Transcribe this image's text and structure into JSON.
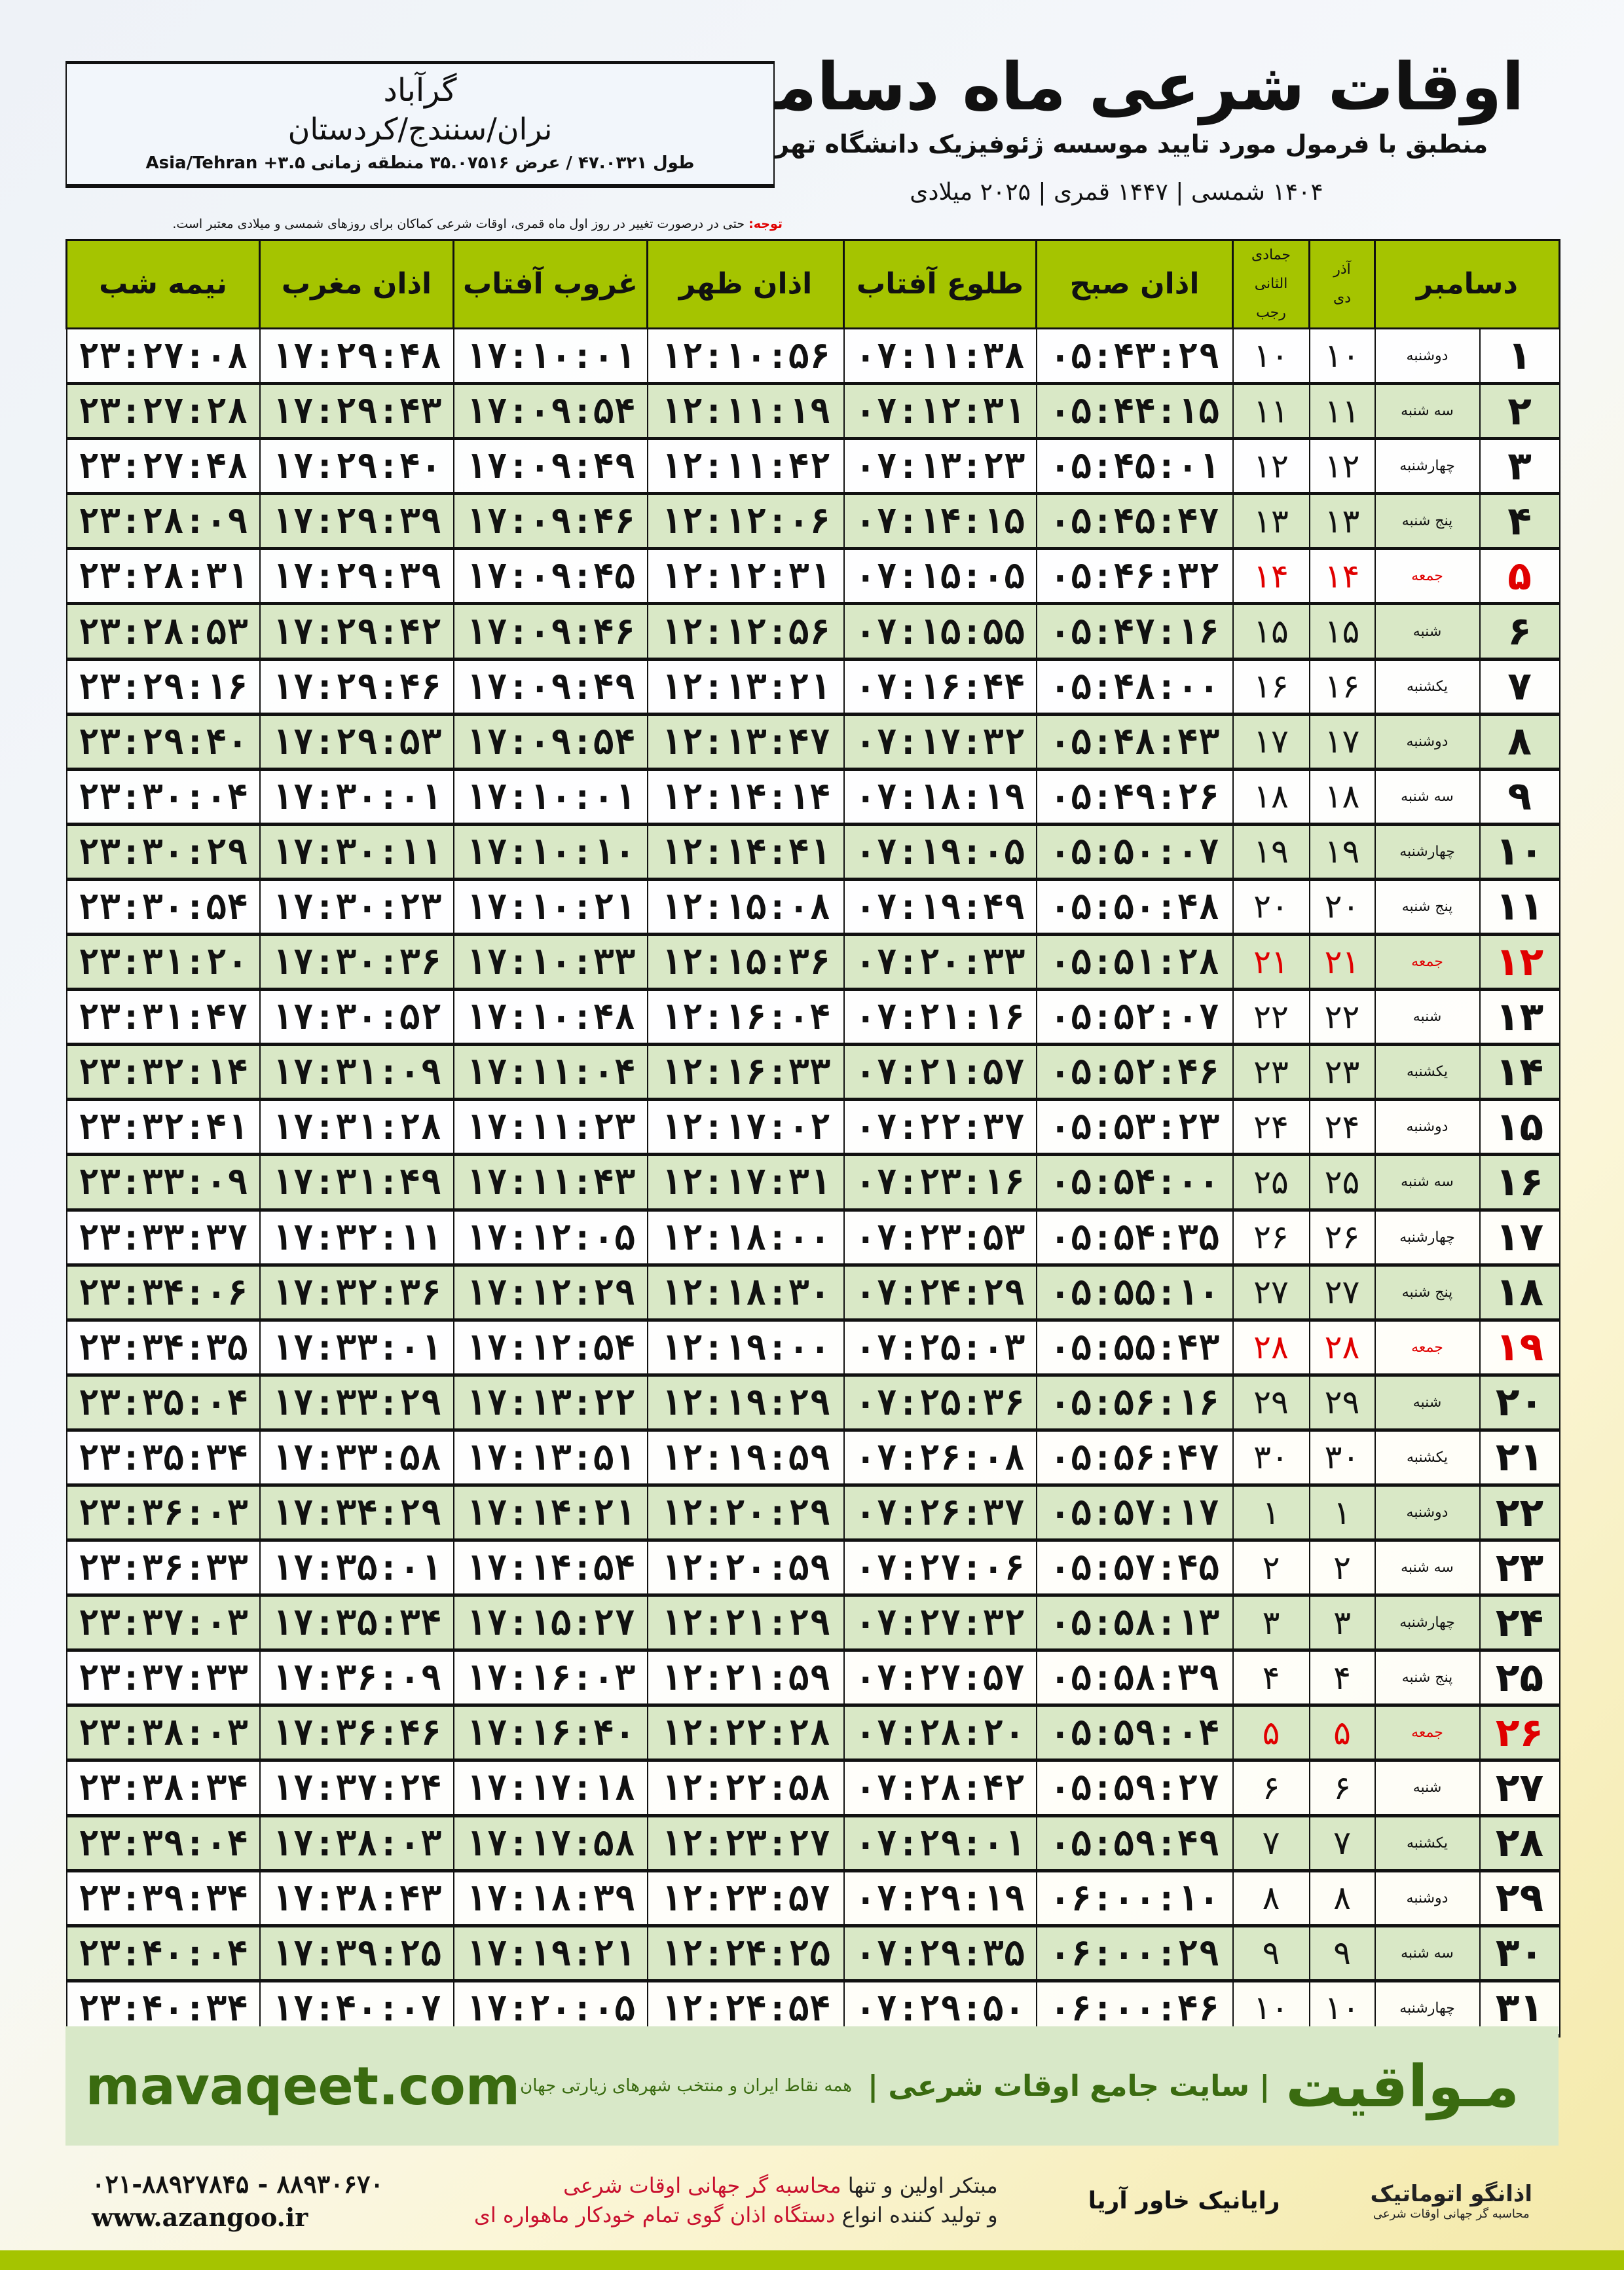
{
  "header": {
    "title": "اوقات شرعی ماه دسامبر",
    "subtitle": "منطبق با فرمول مورد تایید موسسه ژئوفیزیک دانشگاه تهران",
    "years": "۱۴۰۴ شمسی | ۱۴۴۷ قمری | ۲۰۲۵ میلادی"
  },
  "location": {
    "city": "گرآباد",
    "province": "نران/سنندج/کردستان",
    "coords": "طول ۴۷.۰۳۲۱ / عرض ۳۵.۰۷۵۱۶ منطقه زمانی ۳.۵+ Asia/Tehran"
  },
  "note": {
    "label": "توجه:",
    "text": " حتی در درصورت تغییر در روز اول ماه قمری، اوقات شرعی کماکان برای روزهای شمسی و میلادی معتبر است."
  },
  "table": {
    "headers": {
      "day": "دسامبر",
      "solar_top": "آذر",
      "solar_bottom": "دی",
      "lunar_top": "جمادی الثانی",
      "lunar_bottom": "رجب",
      "fajr": "اذان صبح",
      "sunrise": "طلوع آفتاب",
      "dhuhr": "اذان ظهر",
      "sunset": "غروب آفتاب",
      "maghrib": "اذان مغرب",
      "midnight": "نیمه شب"
    },
    "friday_color": "#e00000",
    "rows": [
      [
        "۱",
        "دوشنبه",
        "۱۰",
        "۱۰",
        "۰۵:۴۳:۲۹",
        "۰۷:۱۱:۳۸",
        "۱۲:۱۰:۵۶",
        "۱۷:۱۰:۰۱",
        "۱۷:۲۹:۴۸",
        "۲۳:۲۷:۰۸"
      ],
      [
        "۲",
        "سه شنبه",
        "۱۱",
        "۱۱",
        "۰۵:۴۴:۱۵",
        "۰۷:۱۲:۳۱",
        "۱۲:۱۱:۱۹",
        "۱۷:۰۹:۵۴",
        "۱۷:۲۹:۴۳",
        "۲۳:۲۷:۲۸"
      ],
      [
        "۳",
        "چهارشنبه",
        "۱۲",
        "۱۲",
        "۰۵:۴۵:۰۱",
        "۰۷:۱۳:۲۳",
        "۱۲:۱۱:۴۲",
        "۱۷:۰۹:۴۹",
        "۱۷:۲۹:۴۰",
        "۲۳:۲۷:۴۸"
      ],
      [
        "۴",
        "پنج شنبه",
        "۱۳",
        "۱۳",
        "۰۵:۴۵:۴۷",
        "۰۷:۱۴:۱۵",
        "۱۲:۱۲:۰۶",
        "۱۷:۰۹:۴۶",
        "۱۷:۲۹:۳۹",
        "۲۳:۲۸:۰۹"
      ],
      [
        "۵",
        "جمعه",
        "۱۴",
        "۱۴",
        "۰۵:۴۶:۳۲",
        "۰۷:۱۵:۰۵",
        "۱۲:۱۲:۳۱",
        "۱۷:۰۹:۴۵",
        "۱۷:۲۹:۳۹",
        "۲۳:۲۸:۳۱"
      ],
      [
        "۶",
        "شنبه",
        "۱۵",
        "۱۵",
        "۰۵:۴۷:۱۶",
        "۰۷:۱۵:۵۵",
        "۱۲:۱۲:۵۶",
        "۱۷:۰۹:۴۶",
        "۱۷:۲۹:۴۲",
        "۲۳:۲۸:۵۳"
      ],
      [
        "۷",
        "یکشنبه",
        "۱۶",
        "۱۶",
        "۰۵:۴۸:۰۰",
        "۰۷:۱۶:۴۴",
        "۱۲:۱۳:۲۱",
        "۱۷:۰۹:۴۹",
        "۱۷:۲۹:۴۶",
        "۲۳:۲۹:۱۶"
      ],
      [
        "۸",
        "دوشنبه",
        "۱۷",
        "۱۷",
        "۰۵:۴۸:۴۳",
        "۰۷:۱۷:۳۲",
        "۱۲:۱۳:۴۷",
        "۱۷:۰۹:۵۴",
        "۱۷:۲۹:۵۳",
        "۲۳:۲۹:۴۰"
      ],
      [
        "۹",
        "سه شنبه",
        "۱۸",
        "۱۸",
        "۰۵:۴۹:۲۶",
        "۰۷:۱۸:۱۹",
        "۱۲:۱۴:۱۴",
        "۱۷:۱۰:۰۱",
        "۱۷:۳۰:۰۱",
        "۲۳:۳۰:۰۴"
      ],
      [
        "۱۰",
        "چهارشنبه",
        "۱۹",
        "۱۹",
        "۰۵:۵۰:۰۷",
        "۰۷:۱۹:۰۵",
        "۱۲:۱۴:۴۱",
        "۱۷:۱۰:۱۰",
        "۱۷:۳۰:۱۱",
        "۲۳:۳۰:۲۹"
      ],
      [
        "۱۱",
        "پنج شنبه",
        "۲۰",
        "۲۰",
        "۰۵:۵۰:۴۸",
        "۰۷:۱۹:۴۹",
        "۱۲:۱۵:۰۸",
        "۱۷:۱۰:۲۱",
        "۱۷:۳۰:۲۳",
        "۲۳:۳۰:۵۴"
      ],
      [
        "۱۲",
        "جمعه",
        "۲۱",
        "۲۱",
        "۰۵:۵۱:۲۸",
        "۰۷:۲۰:۳۳",
        "۱۲:۱۵:۳۶",
        "۱۷:۱۰:۳۳",
        "۱۷:۳۰:۳۶",
        "۲۳:۳۱:۲۰"
      ],
      [
        "۱۳",
        "شنبه",
        "۲۲",
        "۲۲",
        "۰۵:۵۲:۰۷",
        "۰۷:۲۱:۱۶",
        "۱۲:۱۶:۰۴",
        "۱۷:۱۰:۴۸",
        "۱۷:۳۰:۵۲",
        "۲۳:۳۱:۴۷"
      ],
      [
        "۱۴",
        "یکشنبه",
        "۲۳",
        "۲۳",
        "۰۵:۵۲:۴۶",
        "۰۷:۲۱:۵۷",
        "۱۲:۱۶:۳۳",
        "۱۷:۱۱:۰۴",
        "۱۷:۳۱:۰۹",
        "۲۳:۳۲:۱۴"
      ],
      [
        "۱۵",
        "دوشنبه",
        "۲۴",
        "۲۴",
        "۰۵:۵۳:۲۳",
        "۰۷:۲۲:۳۷",
        "۱۲:۱۷:۰۲",
        "۱۷:۱۱:۲۳",
        "۱۷:۳۱:۲۸",
        "۲۳:۳۲:۴۱"
      ],
      [
        "۱۶",
        "سه شنبه",
        "۲۵",
        "۲۵",
        "۰۵:۵۴:۰۰",
        "۰۷:۲۳:۱۶",
        "۱۲:۱۷:۳۱",
        "۱۷:۱۱:۴۳",
        "۱۷:۳۱:۴۹",
        "۲۳:۳۳:۰۹"
      ],
      [
        "۱۷",
        "چهارشنبه",
        "۲۶",
        "۲۶",
        "۰۵:۵۴:۳۵",
        "۰۷:۲۳:۵۳",
        "۱۲:۱۸:۰۰",
        "۱۷:۱۲:۰۵",
        "۱۷:۳۲:۱۱",
        "۲۳:۳۳:۳۷"
      ],
      [
        "۱۸",
        "پنج شنبه",
        "۲۷",
        "۲۷",
        "۰۵:۵۵:۱۰",
        "۰۷:۲۴:۲۹",
        "۱۲:۱۸:۳۰",
        "۱۷:۱۲:۲۹",
        "۱۷:۳۲:۳۶",
        "۲۳:۳۴:۰۶"
      ],
      [
        "۱۹",
        "جمعه",
        "۲۸",
        "۲۸",
        "۰۵:۵۵:۴۳",
        "۰۷:۲۵:۰۳",
        "۱۲:۱۹:۰۰",
        "۱۷:۱۲:۵۴",
        "۱۷:۳۳:۰۱",
        "۲۳:۳۴:۳۵"
      ],
      [
        "۲۰",
        "شنبه",
        "۲۹",
        "۲۹",
        "۰۵:۵۶:۱۶",
        "۰۷:۲۵:۳۶",
        "۱۲:۱۹:۲۹",
        "۱۷:۱۳:۲۲",
        "۱۷:۳۳:۲۹",
        "۲۳:۳۵:۰۴"
      ],
      [
        "۲۱",
        "یکشنبه",
        "۳۰",
        "۳۰",
        "۰۵:۵۶:۴۷",
        "۰۷:۲۶:۰۸",
        "۱۲:۱۹:۵۹",
        "۱۷:۱۳:۵۱",
        "۱۷:۳۳:۵۸",
        "۲۳:۳۵:۳۴"
      ],
      [
        "۲۲",
        "دوشنبه",
        "۱",
        "۱",
        "۰۵:۵۷:۱۷",
        "۰۷:۲۶:۳۷",
        "۱۲:۲۰:۲۹",
        "۱۷:۱۴:۲۱",
        "۱۷:۳۴:۲۹",
        "۲۳:۳۶:۰۳"
      ],
      [
        "۲۳",
        "سه شنبه",
        "۲",
        "۲",
        "۰۵:۵۷:۴۵",
        "۰۷:۲۷:۰۶",
        "۱۲:۲۰:۵۹",
        "۱۷:۱۴:۵۴",
        "۱۷:۳۵:۰۱",
        "۲۳:۳۶:۳۳"
      ],
      [
        "۲۴",
        "چهارشنبه",
        "۳",
        "۳",
        "۰۵:۵۸:۱۳",
        "۰۷:۲۷:۳۲",
        "۱۲:۲۱:۲۹",
        "۱۷:۱۵:۲۷",
        "۱۷:۳۵:۳۴",
        "۲۳:۳۷:۰۳"
      ],
      [
        "۲۵",
        "پنج شنبه",
        "۴",
        "۴",
        "۰۵:۵۸:۳۹",
        "۰۷:۲۷:۵۷",
        "۱۲:۲۱:۵۹",
        "۱۷:۱۶:۰۳",
        "۱۷:۳۶:۰۹",
        "۲۳:۳۷:۳۳"
      ],
      [
        "۲۶",
        "جمعه",
        "۵",
        "۵",
        "۰۵:۵۹:۰۴",
        "۰۷:۲۸:۲۰",
        "۱۲:۲۲:۲۸",
        "۱۷:۱۶:۴۰",
        "۱۷:۳۶:۴۶",
        "۲۳:۳۸:۰۳"
      ],
      [
        "۲۷",
        "شنبه",
        "۶",
        "۶",
        "۰۵:۵۹:۲۷",
        "۰۷:۲۸:۴۲",
        "۱۲:۲۲:۵۸",
        "۱۷:۱۷:۱۸",
        "۱۷:۳۷:۲۴",
        "۲۳:۳۸:۳۴"
      ],
      [
        "۲۸",
        "یکشنبه",
        "۷",
        "۷",
        "۰۵:۵۹:۴۹",
        "۰۷:۲۹:۰۱",
        "۱۲:۲۳:۲۷",
        "۱۷:۱۷:۵۸",
        "۱۷:۳۸:۰۳",
        "۲۳:۳۹:۰۴"
      ],
      [
        "۲۹",
        "دوشنبه",
        "۸",
        "۸",
        "۰۶:۰۰:۱۰",
        "۰۷:۲۹:۱۹",
        "۱۲:۲۳:۵۷",
        "۱۷:۱۸:۳۹",
        "۱۷:۳۸:۴۳",
        "۲۳:۳۹:۳۴"
      ],
      [
        "۳۰",
        "سه شنبه",
        "۹",
        "۹",
        "۰۶:۰۰:۲۹",
        "۰۷:۲۹:۳۵",
        "۱۲:۲۴:۲۵",
        "۱۷:۱۹:۲۱",
        "۱۷:۳۹:۲۵",
        "۲۳:۴۰:۰۴"
      ],
      [
        "۳۱",
        "چهارشنبه",
        "۱۰",
        "۱۰",
        "۰۶:۰۰:۴۶",
        "۰۷:۲۹:۵۰",
        "۱۲:۲۴:۵۴",
        "۱۷:۲۰:۰۵",
        "۱۷:۴۰:۰۷",
        "۲۳:۴۰:۳۴"
      ]
    ]
  },
  "banner": {
    "logo": "مـواقیت",
    "tagline": "| سایت جامع اوقات شرعی |",
    "tagline2": "همه نقاط ایران و منتخب شهرهای زیارتی جهان",
    "site": "mavaqeet.com"
  },
  "footer": {
    "azangoo": "اذانگو اتوماتیک",
    "azangoo_sub": "محاسبه گر جهانی اوقات شرعی",
    "rayanik": "رایانیک خاور آریا",
    "slogan1_a": "مبتکر اولین و تنها ",
    "slogan1_b": "محاسبه گر جهانی اوقات شرعی",
    "slogan2_a": "و تولید کننده انواع ",
    "slogan2_b": "دستگاه اذان گوی تمام خودکار ماهواره ای",
    "phone": "۰۲۱-۸۸۹۲۷۸۴۵ - ۸۸۹۳۰۶۷۰",
    "website": "www.azangoo.ir"
  }
}
